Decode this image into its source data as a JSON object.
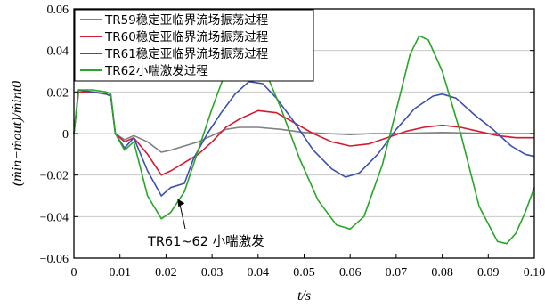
{
  "chart_data": {
    "type": "line",
    "xlabel": "t/s",
    "ylabel": "(ṁin−ṁout)/ṁint0",
    "xlim": [
      0,
      0.1
    ],
    "ylim": [
      -0.06,
      0.06
    ],
    "x_ticks": [
      0,
      0.01,
      0.02,
      0.03,
      0.04,
      0.05,
      0.06,
      0.07,
      0.08,
      0.09,
      0.1
    ],
    "x_tick_labels": [
      "0",
      "0.01",
      "0.02",
      "0.03",
      "0.04",
      "0.05",
      "0.06",
      "0.07",
      "0.08",
      "0.09",
      "0.10"
    ],
    "y_ticks": [
      -0.06,
      -0.04,
      -0.02,
      0,
      0.02,
      0.04,
      0.06
    ],
    "y_tick_labels": [
      "−0.06",
      "−0.04",
      "−0.02",
      "0",
      "0.02",
      "0.04",
      "0.06"
    ],
    "grid": "horizontal",
    "legend_position": "top-left",
    "series": [
      {
        "name": "TR59稳定亚临界流场振荡过程",
        "color": "#808080",
        "points": [
          [
            0,
            0.0
          ],
          [
            0.001,
            0.02
          ],
          [
            0.004,
            0.02
          ],
          [
            0.007,
            0.019
          ],
          [
            0.008,
            0.018
          ],
          [
            0.009,
            0.0
          ],
          [
            0.011,
            -0.003
          ],
          [
            0.013,
            -0.001
          ],
          [
            0.016,
            -0.004
          ],
          [
            0.019,
            -0.009
          ],
          [
            0.021,
            -0.008
          ],
          [
            0.024,
            -0.006
          ],
          [
            0.027,
            -0.004
          ],
          [
            0.03,
            -0.001
          ],
          [
            0.033,
            0.002
          ],
          [
            0.036,
            0.003
          ],
          [
            0.04,
            0.003
          ],
          [
            0.045,
            0.002
          ],
          [
            0.05,
            0.0005
          ],
          [
            0.055,
            0.0
          ],
          [
            0.06,
            -0.0005
          ],
          [
            0.065,
            0.0
          ],
          [
            0.07,
            0.0
          ],
          [
            0.08,
            0.0005
          ],
          [
            0.09,
            0.0
          ],
          [
            0.1,
            0.0
          ]
        ]
      },
      {
        "name": "TR60稳定亚临界流场振荡过程",
        "color": "#d8182e",
        "points": [
          [
            0,
            0.0
          ],
          [
            0.001,
            0.02
          ],
          [
            0.004,
            0.02
          ],
          [
            0.007,
            0.019
          ],
          [
            0.008,
            0.018
          ],
          [
            0.009,
            0.0
          ],
          [
            0.011,
            -0.004
          ],
          [
            0.013,
            -0.002
          ],
          [
            0.016,
            -0.01
          ],
          [
            0.019,
            -0.02
          ],
          [
            0.021,
            -0.018
          ],
          [
            0.024,
            -0.014
          ],
          [
            0.027,
            -0.01
          ],
          [
            0.03,
            -0.004
          ],
          [
            0.033,
            0.003
          ],
          [
            0.036,
            0.007
          ],
          [
            0.04,
            0.011
          ],
          [
            0.044,
            0.01
          ],
          [
            0.048,
            0.005
          ],
          [
            0.052,
            0.0
          ],
          [
            0.056,
            -0.004
          ],
          [
            0.06,
            -0.006
          ],
          [
            0.064,
            -0.005
          ],
          [
            0.068,
            -0.002
          ],
          [
            0.072,
            0.001
          ],
          [
            0.076,
            0.003
          ],
          [
            0.08,
            0.004
          ],
          [
            0.084,
            0.003
          ],
          [
            0.088,
            0.001
          ],
          [
            0.092,
            -0.001
          ],
          [
            0.096,
            -0.002
          ],
          [
            0.1,
            -0.002
          ]
        ]
      },
      {
        "name": "TR61稳定亚临界流场振荡过程",
        "color": "#3c4fb0",
        "points": [
          [
            0,
            0.0
          ],
          [
            0.001,
            0.021
          ],
          [
            0.004,
            0.02
          ],
          [
            0.007,
            0.019
          ],
          [
            0.008,
            0.018
          ],
          [
            0.009,
            0.0
          ],
          [
            0.011,
            -0.007
          ],
          [
            0.013,
            -0.002
          ],
          [
            0.016,
            -0.018
          ],
          [
            0.019,
            -0.03
          ],
          [
            0.021,
            -0.026
          ],
          [
            0.024,
            -0.024
          ],
          [
            0.026,
            -0.012
          ],
          [
            0.029,
            0.0
          ],
          [
            0.032,
            0.01
          ],
          [
            0.035,
            0.019
          ],
          [
            0.038,
            0.025
          ],
          [
            0.041,
            0.024
          ],
          [
            0.044,
            0.017
          ],
          [
            0.048,
            0.005
          ],
          [
            0.052,
            -0.008
          ],
          [
            0.056,
            -0.017
          ],
          [
            0.059,
            -0.021
          ],
          [
            0.062,
            -0.019
          ],
          [
            0.066,
            -0.01
          ],
          [
            0.07,
            0.002
          ],
          [
            0.074,
            0.012
          ],
          [
            0.078,
            0.018
          ],
          [
            0.08,
            0.019
          ],
          [
            0.083,
            0.017
          ],
          [
            0.087,
            0.009
          ],
          [
            0.091,
            0.002
          ],
          [
            0.095,
            -0.006
          ],
          [
            0.098,
            -0.01
          ],
          [
            0.1,
            -0.011
          ]
        ]
      },
      {
        "name": "TR62小喘激发过程",
        "color": "#2aa52a",
        "points": [
          [
            0,
            0.0
          ],
          [
            0.001,
            0.021
          ],
          [
            0.004,
            0.021
          ],
          [
            0.007,
            0.02
          ],
          [
            0.008,
            0.019
          ],
          [
            0.009,
            0.0
          ],
          [
            0.011,
            -0.008
          ],
          [
            0.013,
            -0.004
          ],
          [
            0.016,
            -0.03
          ],
          [
            0.019,
            -0.041
          ],
          [
            0.021,
            -0.038
          ],
          [
            0.024,
            -0.028
          ],
          [
            0.027,
            -0.008
          ],
          [
            0.03,
            0.012
          ],
          [
            0.033,
            0.03
          ],
          [
            0.036,
            0.041
          ],
          [
            0.038,
            0.041
          ],
          [
            0.041,
            0.033
          ],
          [
            0.045,
            0.012
          ],
          [
            0.049,
            -0.012
          ],
          [
            0.053,
            -0.032
          ],
          [
            0.057,
            -0.044
          ],
          [
            0.06,
            -0.046
          ],
          [
            0.063,
            -0.04
          ],
          [
            0.067,
            -0.015
          ],
          [
            0.071,
            0.02
          ],
          [
            0.073,
            0.038
          ],
          [
            0.075,
            0.047
          ],
          [
            0.077,
            0.045
          ],
          [
            0.08,
            0.03
          ],
          [
            0.084,
            0.0
          ],
          [
            0.088,
            -0.035
          ],
          [
            0.092,
            -0.052
          ],
          [
            0.094,
            -0.053
          ],
          [
            0.096,
            -0.048
          ],
          [
            0.098,
            -0.038
          ],
          [
            0.1,
            -0.026
          ]
        ]
      }
    ],
    "annotations": [
      {
        "text": "TR61~62 小喘激发",
        "x": 0.0225,
        "y": -0.031
      }
    ]
  }
}
